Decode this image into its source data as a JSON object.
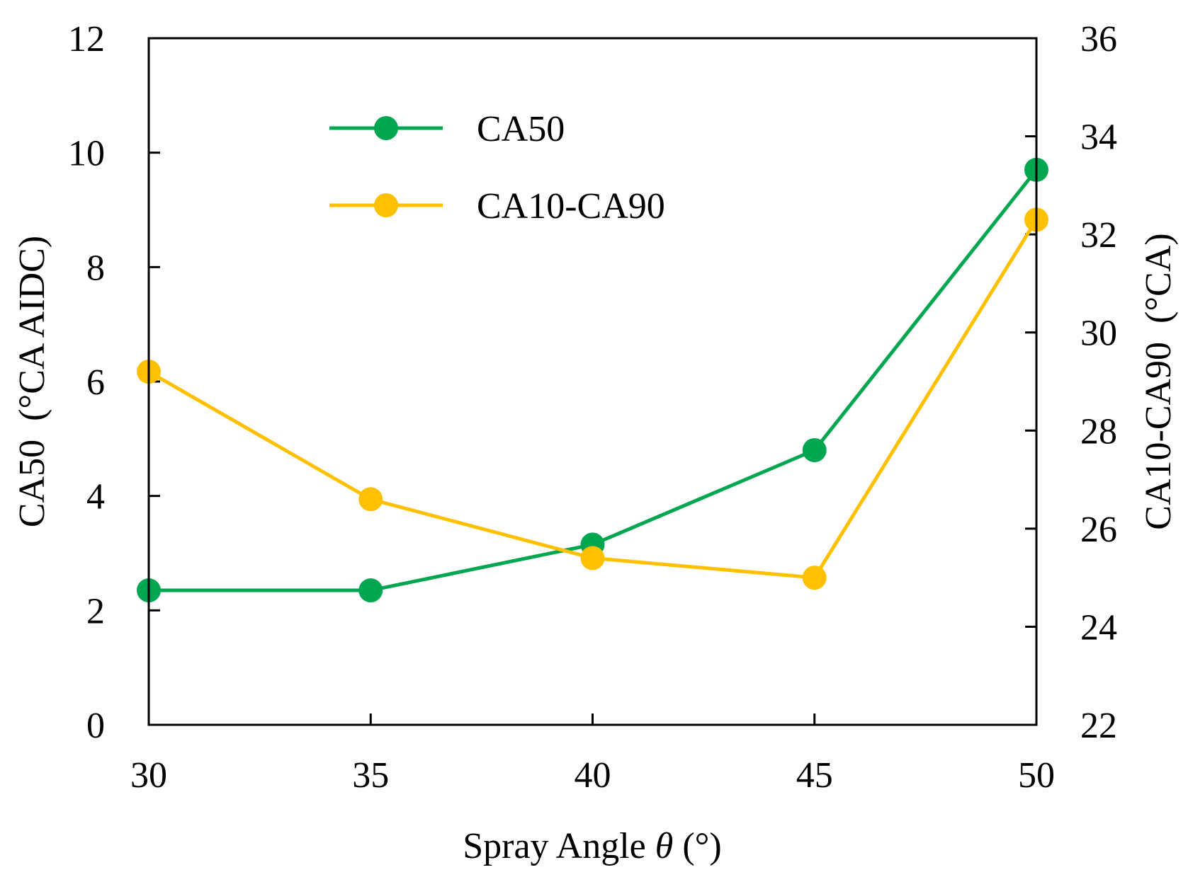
{
  "chart_data": {
    "type": "line",
    "title": "",
    "xlabel": "Spray Angle θ (°)",
    "xlabel_main": "Spray Angle ",
    "xlabel_symbol": "θ",
    "xlabel_unit": " (°)",
    "ylabel_left": "CA50  (°CA AIDC)",
    "ylabel_right": "CA10-CA90  (°CA)",
    "x": [
      30,
      35,
      40,
      45,
      50
    ],
    "xlim": [
      30,
      50
    ],
    "xticks": [
      30,
      35,
      40,
      45,
      50
    ],
    "ylim_left": [
      0,
      12
    ],
    "yticks_left": [
      0,
      2,
      4,
      6,
      8,
      10,
      12
    ],
    "ylim_right": [
      22,
      36
    ],
    "yticks_right": [
      22,
      24,
      26,
      28,
      30,
      32,
      34,
      36
    ],
    "grid": false,
    "legend_position": "top-left",
    "series": [
      {
        "name": "CA50",
        "axis": "left",
        "color": "#00A650",
        "values": [
          2.35,
          2.35,
          3.15,
          4.8,
          9.7
        ]
      },
      {
        "name": "CA10-CA90",
        "axis": "right",
        "color": "#FFC000",
        "values": [
          29.2,
          26.6,
          25.4,
          25.0,
          32.3
        ]
      }
    ]
  }
}
